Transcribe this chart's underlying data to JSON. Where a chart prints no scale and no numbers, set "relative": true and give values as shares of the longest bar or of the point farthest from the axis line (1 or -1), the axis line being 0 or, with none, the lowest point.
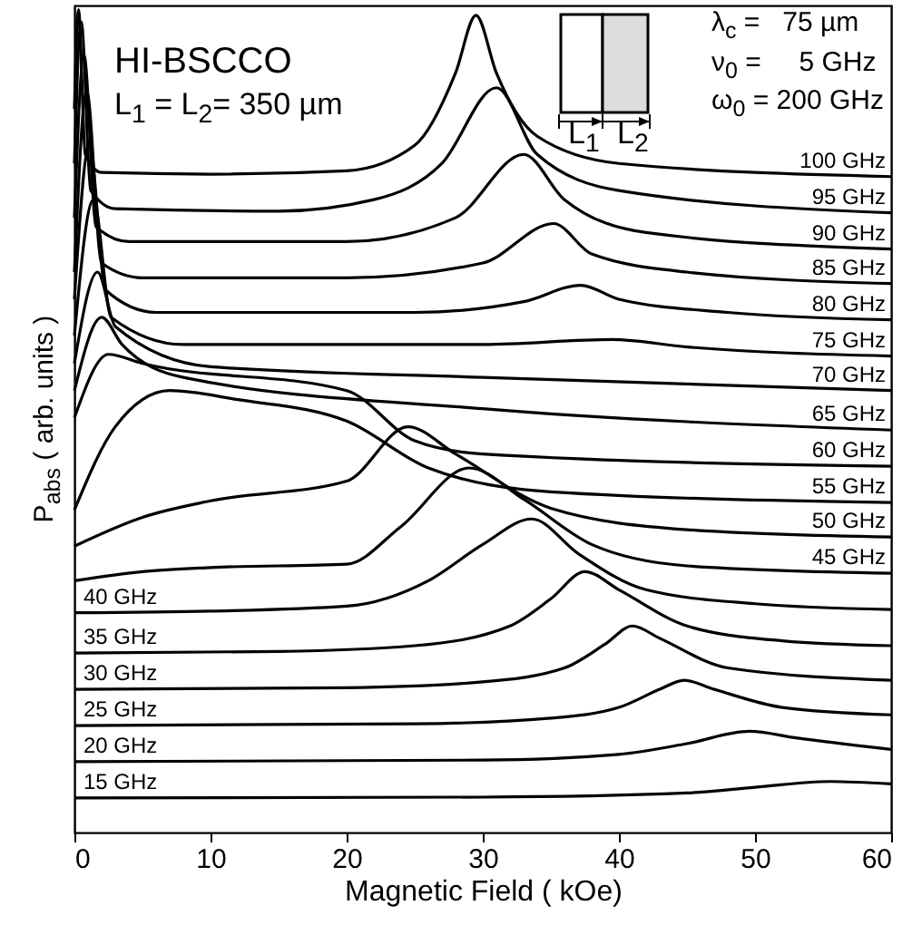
{
  "chart_data": {
    "type": "line",
    "relative": true,
    "xlabel": "Magnetic Field ( kOe)",
    "ylabel": "P$_{abs}$ ( arb. units )",
    "xlim": [
      0,
      60
    ],
    "xticks": [
      0,
      10,
      20,
      30,
      40,
      50,
      60
    ],
    "annotations": [
      "HI-BSCCO",
      "L$_{1}$ = L$_{2}$= 350 µm",
      "λ$_{c}$ =   75 µm",
      "ν$_{0}$ =     5 GHz",
      "ω$_{0}$ = 200 GHz",
      "L$_{1}$",
      "L$_{2}$"
    ],
    "series": [
      {
        "name": "100 GHz",
        "color": "#000000",
        "x": [
          0,
          0.3,
          0.8,
          2,
          10,
          20,
          25,
          28,
          29.5,
          31,
          34,
          40,
          60
        ],
        "values": [
          0.879,
          1.0,
          0.824,
          0.802,
          0.8,
          0.804,
          0.835,
          0.923,
          0.993,
          0.923,
          0.846,
          0.813,
          0.797
        ]
      },
      {
        "name": "95 GHz",
        "color": "#000000",
        "x": [
          0,
          0.5,
          1.2,
          3,
          15,
          22,
          27,
          31,
          34,
          40,
          60
        ],
        "values": [
          0.813,
          0.985,
          0.78,
          0.758,
          0.755,
          0.769,
          0.813,
          0.905,
          0.824,
          0.78,
          0.753
        ]
      },
      {
        "name": "90 GHz",
        "color": "#000000",
        "x": [
          0,
          0.7,
          1.6,
          4,
          20,
          28,
          33,
          36,
          42,
          60
        ],
        "values": [
          0.747,
          0.945,
          0.736,
          0.718,
          0.718,
          0.747,
          0.824,
          0.769,
          0.729,
          0.709
        ]
      },
      {
        "name": "85 GHz",
        "color": "#000000",
        "x": [
          0,
          0.9,
          2,
          5,
          20,
          30,
          35.2,
          38,
          45,
          60
        ],
        "values": [
          0.681,
          0.901,
          0.692,
          0.674,
          0.674,
          0.692,
          0.74,
          0.703,
          0.681,
          0.667
        ]
      },
      {
        "name": "80 GHz",
        "color": "#000000",
        "x": [
          0,
          1.1,
          2.3,
          6,
          25,
          33,
          37.2,
          40,
          48,
          60
        ],
        "values": [
          0.648,
          0.835,
          0.659,
          0.632,
          0.632,
          0.645,
          0.665,
          0.648,
          0.632,
          0.623
        ]
      },
      {
        "name": "75 GHz",
        "color": "#000000",
        "x": [
          0,
          1.4,
          2.7,
          8,
          30,
          39.5,
          45,
          60
        ],
        "values": [
          0.604,
          0.769,
          0.626,
          0.593,
          0.593,
          0.599,
          0.59,
          0.579
        ]
      },
      {
        "name": "70 GHz",
        "color": "#000000",
        "x": [
          0,
          1.7,
          3,
          10,
          30,
          60
        ],
        "values": [
          0.57,
          0.681,
          0.615,
          0.566,
          0.553,
          0.537
        ]
      },
      {
        "name": "65 GHz",
        "color": "#000000",
        "x": [
          0,
          2,
          3.5,
          8,
          30,
          60
        ],
        "values": [
          0.537,
          0.626,
          0.593,
          0.553,
          0.515,
          0.489
        ]
      },
      {
        "name": "60 GHz",
        "color": "#000000",
        "x": [
          0,
          2.5,
          5,
          20,
          25,
          30,
          60
        ],
        "values": [
          0.504,
          0.581,
          0.57,
          0.537,
          0.476,
          0.46,
          0.445
        ]
      },
      {
        "name": "55 GHz",
        "color": "#000000",
        "x": [
          0,
          3,
          7,
          12,
          20,
          26,
          35,
          60
        ],
        "values": [
          0.392,
          0.493,
          0.537,
          0.526,
          0.5,
          0.443,
          0.414,
          0.401
        ]
      },
      {
        "name": "50 GHz",
        "color": "#000000",
        "x": [
          0,
          5,
          10,
          20,
          24.5,
          28,
          35,
          45,
          60
        ],
        "values": [
          0.348,
          0.383,
          0.403,
          0.427,
          0.493,
          0.46,
          0.394,
          0.368,
          0.359
        ]
      },
      {
        "name": "45 GHz",
        "color": "#000000",
        "x": [
          0,
          5,
          10,
          20,
          24,
          29,
          33,
          38,
          45,
          60
        ],
        "values": [
          0.306,
          0.317,
          0.322,
          0.326,
          0.372,
          0.443,
          0.405,
          0.35,
          0.324,
          0.315
        ]
      },
      {
        "name": "40 GHz",
        "color": "#000000",
        "x": [
          0,
          10,
          20,
          26,
          30,
          33.6,
          37,
          42,
          50,
          60
        ],
        "values": [
          0.267,
          0.269,
          0.275,
          0.306,
          0.35,
          0.381,
          0.339,
          0.295,
          0.278,
          0.271
        ]
      },
      {
        "name": "35 GHz",
        "color": "#000000",
        "x": [
          0,
          15,
          25,
          32,
          35,
          37.5,
          40,
          45,
          52,
          60
        ],
        "values": [
          0.218,
          0.22,
          0.227,
          0.251,
          0.284,
          0.317,
          0.295,
          0.251,
          0.233,
          0.227
        ]
      },
      {
        "name": "30 GHz",
        "color": "#000000",
        "x": [
          0,
          20,
          30,
          36,
          39,
          41,
          43,
          48,
          60
        ],
        "values": [
          0.174,
          0.176,
          0.183,
          0.2,
          0.229,
          0.251,
          0.236,
          0.2,
          0.185
        ]
      },
      {
        "name": "25 GHz",
        "color": "#000000",
        "x": [
          0,
          25,
          35,
          40,
          43,
          44.8,
          47,
          52,
          60
        ],
        "values": [
          0.13,
          0.132,
          0.139,
          0.152,
          0.174,
          0.185,
          0.174,
          0.152,
          0.143
        ]
      },
      {
        "name": "20 GHz",
        "color": "#000000",
        "x": [
          0,
          30,
          40,
          45,
          49.6,
          53,
          60
        ],
        "values": [
          0.086,
          0.088,
          0.095,
          0.108,
          0.123,
          0.115,
          0.101
        ]
      },
      {
        "name": "15 GHz",
        "color": "#000000",
        "x": [
          0,
          30,
          45,
          50,
          55.5,
          60
        ],
        "values": [
          0.042,
          0.043,
          0.048,
          0.055,
          0.062,
          0.059
        ]
      }
    ]
  }
}
